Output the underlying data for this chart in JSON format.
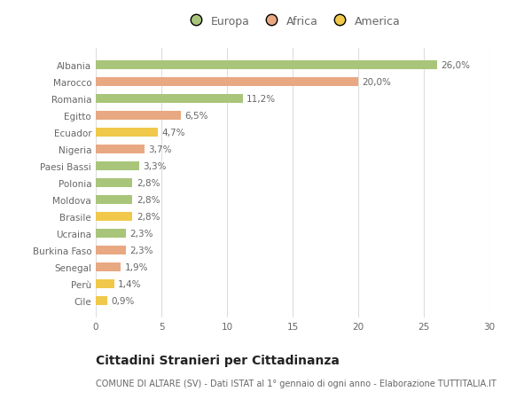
{
  "categories": [
    "Albania",
    "Marocco",
    "Romania",
    "Egitto",
    "Ecuador",
    "Nigeria",
    "Paesi Bassi",
    "Polonia",
    "Moldova",
    "Brasile",
    "Ucraina",
    "Burkina Faso",
    "Senegal",
    "Perù",
    "Cile"
  ],
  "values": [
    26.0,
    20.0,
    11.2,
    6.5,
    4.7,
    3.7,
    3.3,
    2.8,
    2.8,
    2.8,
    2.3,
    2.3,
    1.9,
    1.4,
    0.9
  ],
  "labels": [
    "26,0%",
    "20,0%",
    "11,2%",
    "6,5%",
    "4,7%",
    "3,7%",
    "3,3%",
    "2,8%",
    "2,8%",
    "2,8%",
    "2,3%",
    "2,3%",
    "1,9%",
    "1,4%",
    "0,9%"
  ],
  "colors": [
    "#a8c57a",
    "#e8a882",
    "#a8c57a",
    "#e8a882",
    "#f0c84a",
    "#e8a882",
    "#a8c57a",
    "#a8c57a",
    "#a8c57a",
    "#f0c84a",
    "#a8c57a",
    "#e8a882",
    "#e8a882",
    "#f0c84a",
    "#f0c84a"
  ],
  "legend_labels": [
    "Europa",
    "Africa",
    "America"
  ],
  "legend_colors": [
    "#a8c57a",
    "#e8a882",
    "#f0c84a"
  ],
  "xlim": [
    0,
    30
  ],
  "xticks": [
    0,
    5,
    10,
    15,
    20,
    25,
    30
  ],
  "title": "Cittadini Stranieri per Cittadinanza",
  "subtitle": "COMUNE DI ALTARE (SV) - Dati ISTAT al 1° gennaio di ogni anno - Elaborazione TUTTITALIA.IT",
  "bg_color": "#ffffff",
  "grid_color": "#dddddd",
  "bar_height": 0.55,
  "label_fontsize": 7.5,
  "title_fontsize": 10,
  "subtitle_fontsize": 7,
  "tick_fontsize": 7.5,
  "legend_fontsize": 9
}
